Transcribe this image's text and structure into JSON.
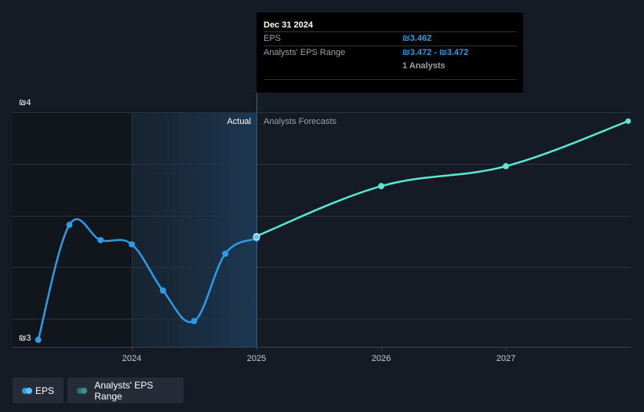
{
  "chart_data": {
    "type": "line",
    "title": "",
    "xlabel": "",
    "ylabel": "",
    "ylim": [
      3,
      4
    ],
    "y_ticks": [
      {
        "value": 3,
        "label": "₪3"
      },
      {
        "value": 4,
        "label": "₪4"
      }
    ],
    "x_ticks": [
      {
        "value": 2024,
        "label": "2024"
      },
      {
        "value": 2025,
        "label": "2025"
      },
      {
        "value": 2026,
        "label": "2026"
      },
      {
        "value": 2027,
        "label": "2027"
      }
    ],
    "divider_x": 2025,
    "region_labels": {
      "actual": "Actual",
      "forecast": "Analysts Forecasts"
    },
    "grid": true,
    "series": [
      {
        "name": "EPS",
        "color": "#2e9be6",
        "points": [
          {
            "x": 2023.25,
            "y": 3.03
          },
          {
            "x": 2023.5,
            "y": 3.52
          },
          {
            "x": 2023.75,
            "y": 3.455
          },
          {
            "x": 2024.0,
            "y": 3.437
          },
          {
            "x": 2024.25,
            "y": 3.24
          },
          {
            "x": 2024.5,
            "y": 3.11
          },
          {
            "x": 2024.75,
            "y": 3.397
          },
          {
            "x": 2025.0,
            "y": 3.462
          }
        ]
      },
      {
        "name": "Analysts' EPS Range",
        "color": "#5ae8d0",
        "points": [
          {
            "x": 2025.0,
            "y": 3.472
          },
          {
            "x": 2026.0,
            "y": 3.685
          },
          {
            "x": 2027.0,
            "y": 3.77
          },
          {
            "x": 2027.98,
            "y": 3.962
          }
        ]
      }
    ]
  },
  "tooltip": {
    "date": "Dec 31 2024",
    "eps_label": "EPS",
    "eps_value": "₪3.462",
    "range_label": "Analysts' EPS Range",
    "range_value": "₪3.472 - ₪3.472",
    "analysts": "1 Analysts"
  },
  "legend": {
    "eps": {
      "label": "EPS",
      "color": "#2e9be6"
    },
    "range": {
      "label": "Analysts' EPS Range",
      "color": "#3d8f86"
    }
  }
}
